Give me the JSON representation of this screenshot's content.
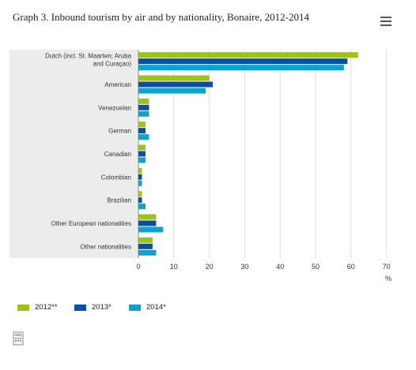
{
  "title": "Graph 3. Inbound tourism by air and by nationality, Bonaire, 2012-2014",
  "menu_icon": "hamburger-menu-icon",
  "export_icon": "print-icon",
  "colors": {
    "2012**": "#9dc31b",
    "2013*": "#0a4fa3",
    "2014*": "#0ea2cf",
    "plot_band": "#ececec",
    "grid": "#dddddd"
  },
  "chart_data": {
    "type": "bar",
    "orientation": "horizontal",
    "categories": [
      "Dutch (incl. St. Maarten; Aruba and Curaçao)",
      "American",
      "Venezuelan",
      "German",
      "Canadian",
      "Colombian",
      "Brazilian",
      "Other European nationalities",
      "Other nationalities"
    ],
    "series": [
      {
        "name": "2012**",
        "values": [
          62,
          20,
          3,
          2,
          2,
          1,
          1,
          5,
          4
        ]
      },
      {
        "name": "2013*",
        "values": [
          59,
          21,
          3,
          2,
          2,
          1,
          1,
          5,
          4
        ]
      },
      {
        "name": "2014*",
        "values": [
          58,
          19,
          3,
          3,
          2,
          1,
          2,
          7,
          5
        ]
      }
    ],
    "x_ticks": [
      0,
      10,
      20,
      30,
      40,
      50,
      60,
      70
    ],
    "xlim": [
      0,
      70
    ],
    "xunit": "%",
    "grid": true,
    "legend_position": "bottom-left"
  }
}
